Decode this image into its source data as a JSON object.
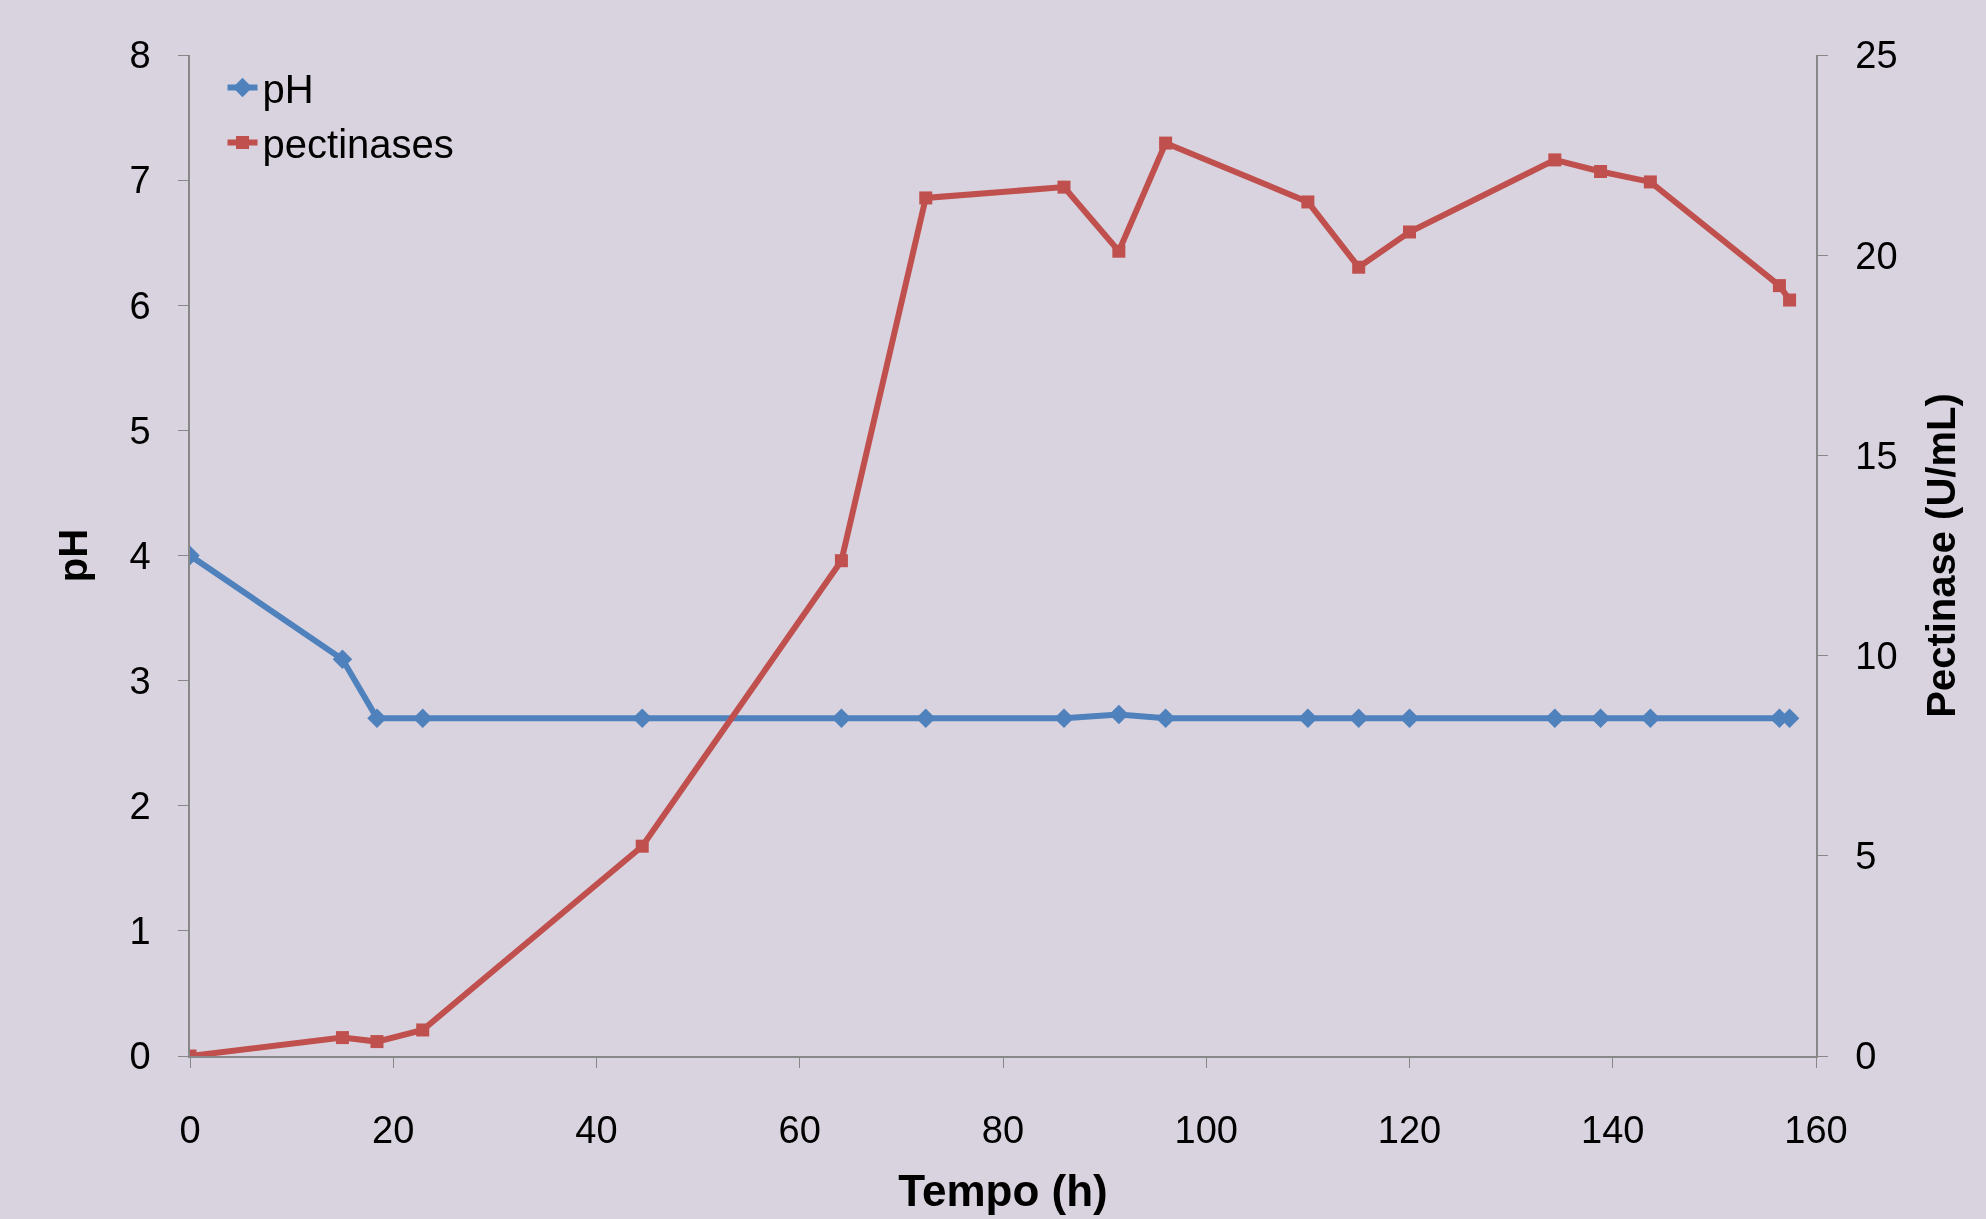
{
  "chart_data": {
    "type": "line",
    "xlabel": "Tempo (h)",
    "ylabel": "pH",
    "y2label": "Pectinase (U/mL)",
    "xlim": [
      0,
      160
    ],
    "xticks": [
      0,
      20,
      40,
      60,
      80,
      100,
      120,
      140,
      160
    ],
    "ylim": [
      0,
      8
    ],
    "yticks": [
      0,
      1,
      2,
      3,
      4,
      5,
      6,
      7,
      8
    ],
    "y2lim": [
      0,
      25
    ],
    "y2ticks": [
      0,
      5,
      10,
      15,
      20,
      25
    ],
    "grid": false,
    "legend": "top left",
    "line_style": "solid",
    "series": [
      {
        "name": "pH",
        "color": "#4f81bd",
        "marker": "diamond",
        "x": [
          0,
          15,
          18.4,
          22.9,
          44.5,
          64.1,
          72.4,
          86,
          91.4,
          96,
          110,
          115,
          120,
          134.3,
          138.8,
          143.7,
          156.4,
          157.4
        ],
        "values": [
          4.0,
          3.17,
          2.7,
          2.7,
          2.7,
          2.7,
          2.7,
          2.7,
          2.73,
          2.7,
          2.7,
          2.7,
          2.7,
          2.7,
          2.7,
          2.7,
          2.7,
          2.7
        ]
      },
      {
        "name": "pectinases",
        "color": "#c0504d",
        "marker": "square",
        "axis": "y2",
        "x": [
          0,
          15,
          18.4,
          22.9,
          44.5,
          64.1,
          72.4,
          86,
          91.4,
          96,
          110,
          115,
          120,
          134.3,
          138.8,
          143.7,
          156.4,
          157.4
        ],
        "values": [
          0,
          0.46,
          0.36,
          0.65,
          5.24,
          12.37,
          21.43,
          21.7,
          20.1,
          22.8,
          21.33,
          19.7,
          20.58,
          22.38,
          22.09,
          21.83,
          19.24,
          18.88
        ]
      }
    ]
  }
}
